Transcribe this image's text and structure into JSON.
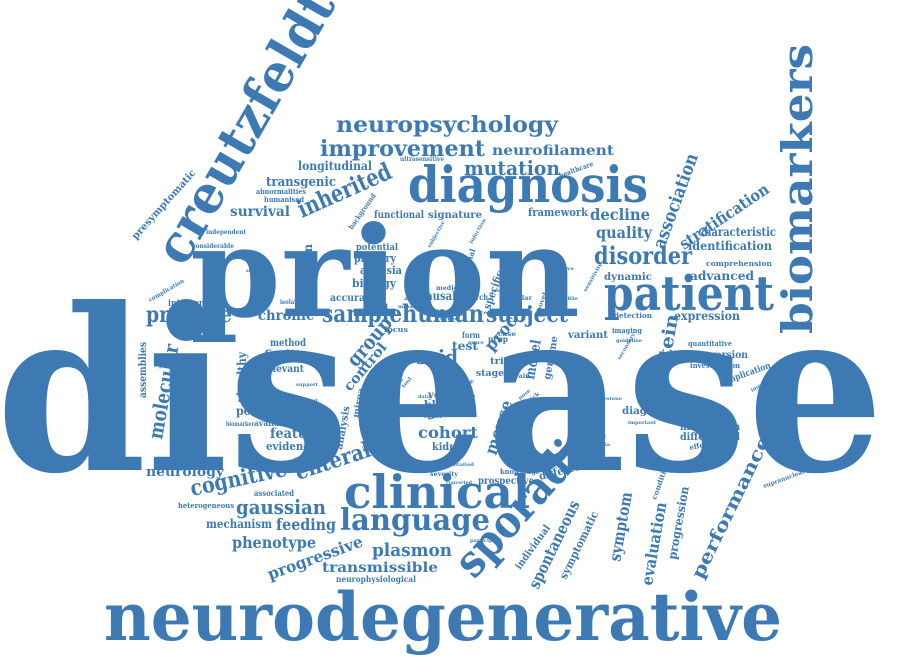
{
  "colors": {
    "word": "#3d7ab3",
    "background": "#ffffff"
  },
  "words": {
    "disease": "disease",
    "neurodegenerative": "neurodegenerative",
    "prion": "prion",
    "creutzfeldt": "creutzfeldt",
    "biomarkers": "biomarkers",
    "diagnosis": "diagnosis",
    "patient": "patient",
    "clinical": "clinical",
    "sporadic": "sporadic",
    "language": "language",
    "neuropsychology": "neuropsychology",
    "improvement": "improvement",
    "neurofilament": "neurofilament",
    "mutation": "mutation",
    "inherited": "inherited",
    "longitudinal": "longitudinal",
    "ultrasensitive": "ultrasensitive",
    "transgenic": "transgenic",
    "presymptomatic": "presymptomatic",
    "survival": "survival",
    "abnormalities": "abnormalities",
    "humanised": "humanised",
    "background": "background",
    "functional": "functional",
    "signature": "signature",
    "framework": "framework",
    "decline": "decline",
    "association": "association",
    "stratification": "stratification",
    "quality": "quality",
    "characteristic": "characteristic",
    "identification": "identification",
    "disorder": "disorder",
    "comprehension": "comprehension",
    "dynamic": "dynamic",
    "advanced": "advanced",
    "independent": "independent",
    "considerable": "considerable",
    "generation": "generation",
    "potential": "potential",
    "primary": "primary",
    "aphasia": "aphasia",
    "biology": "biology",
    "accuracy": "accuracy",
    "causal": "causal",
    "research": "research",
    "specific": "specific",
    "complication": "complication",
    "intervention": "intervention",
    "practice": "practice",
    "chronic": "chronic",
    "sample": "sample",
    "human": "human",
    "subject": "subject",
    "detection": "detection",
    "expression": "expression",
    "imaging": "imaging",
    "assemblies": "assemblies",
    "molecular": "molecular",
    "method": "method",
    "finding": "finding",
    "relevant": "relevant",
    "group": "group",
    "control": "control",
    "focus": "focus",
    "scjd": "scjd",
    "proc": "proc",
    "model": "model",
    "genome": "genome",
    "variant": "variant",
    "protein": "protein",
    "risk": "risk",
    "stage": "stage",
    "test": "test",
    "trial": "trial",
    "quantitative": "quantitative",
    "conversion": "conversion",
    "investigation": "investigation",
    "implication": "implication",
    "healthy": "healthy",
    "associate": "associate",
    "positive": "positive",
    "available": "available",
    "motivation": "motivation",
    "biomarker": "biomarker",
    "feature": "feature",
    "evidence": "evidence",
    "prediction": "prediction",
    "analysis": "analysis",
    "amyloid": "amyloid",
    "mirna": "mirna",
    "study": "study",
    "year": "year",
    "blood": "blood",
    "cohort": "cohort",
    "kidney": "kidney",
    "mouse": "mouse",
    "change": "change",
    "genetic": "genetic",
    "common": "common",
    "dementia": "dementia",
    "diagnostic": "diagnostic",
    "information": "information",
    "differential": "differential",
    "effectiveness": "effectiveness",
    "performance": "performance",
    "impairment": "impairment",
    "neurology": "neurology",
    "cognitive": "cognitive",
    "enteral": "enteral",
    "associated": "associated",
    "gaussian": "gaussian",
    "heterogeneous": "heterogeneous",
    "mechanism": "mechanism",
    "feeding": "feeding",
    "phenotype": "phenotype",
    "progressive": "progressive",
    "plasmon": "plasmon",
    "transmissible": "transmissible",
    "neurophysiological": "neurophysiological",
    "different": "different",
    "knowledge": "knowledge",
    "prospective": "prospective",
    "severity": "severity",
    "converted": "converted",
    "participant": "participant",
    "individual": "individual",
    "spontaneous": "spontaneous",
    "symptomatic": "symptomatic",
    "symptom": "symptom",
    "evaluation": "evaluation",
    "progression": "progression",
    "condition": "condition",
    "supranuclear": "supranuclear",
    "prnp": "prnp",
    "monitoring": "monitoring",
    "national": "national",
    "healthcare": "healthcare",
    "semantic": "semantic",
    "isolated": "isolated",
    "medical": "medical",
    "similar": "similar",
    "effective": "effective",
    "novel": "novel",
    "form": "form",
    "more": "more",
    "case": "case",
    "brain": "brain",
    "milestone": "milestone",
    "secondary": "secondary",
    "guideline": "guideline",
    "important": "important",
    "insight": "insight",
    "result": "result",
    "data": "data",
    "time": "time",
    "treatment": "treatment",
    "quick": "quick",
    "nose": "nose",
    "infection": "infection",
    "range": "range",
    "pattern": "pattern",
    "tool": "tool",
    "acute": "acute",
    "subjective": "subjective",
    "kernel": "kernel",
    "detailed": "detailed",
    "studies": "studies",
    "support": "support",
    "onset": "onset",
    "profile": "profile",
    "sensitivity": "sensitivity",
    "measure": "measure",
    "cell": "cell",
    "role": "role"
  }
}
